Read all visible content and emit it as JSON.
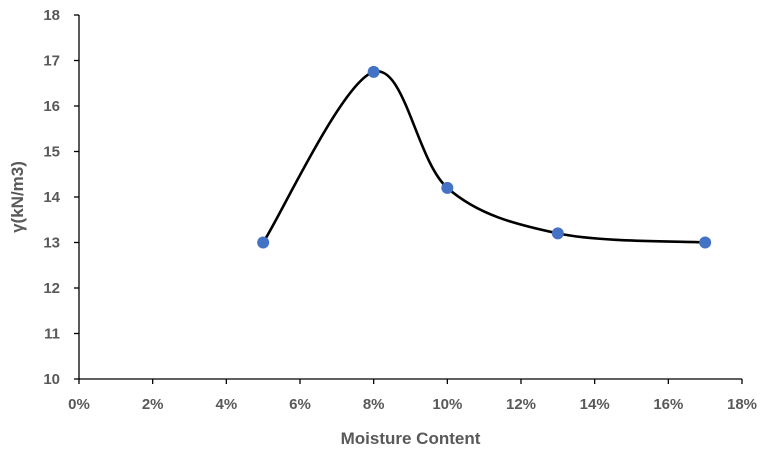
{
  "chart_data": {
    "type": "scatter",
    "title": "",
    "xlabel": "Moisture Content",
    "ylabel": "γ(kN/m3)",
    "xlim": [
      0,
      18
    ],
    "ylim": [
      10,
      18
    ],
    "x_ticks": [
      "0%",
      "2%",
      "4%",
      "6%",
      "8%",
      "10%",
      "12%",
      "14%",
      "16%",
      "18%"
    ],
    "x_tick_values": [
      0,
      2,
      4,
      6,
      8,
      10,
      12,
      14,
      16,
      18
    ],
    "y_ticks": [
      "10",
      "11",
      "12",
      "13",
      "14",
      "15",
      "16",
      "17",
      "18"
    ],
    "y_tick_values": [
      10,
      11,
      12,
      13,
      14,
      15,
      16,
      17,
      18
    ],
    "grid": false,
    "legend": "none",
    "smooth_line": true,
    "series": [
      {
        "x": [
          5,
          8,
          10,
          13,
          17
        ],
        "y": [
          13.0,
          16.75,
          14.2,
          13.2,
          13.0
        ],
        "marker_color": "#4472C4",
        "line_color": "#000000"
      }
    ]
  }
}
